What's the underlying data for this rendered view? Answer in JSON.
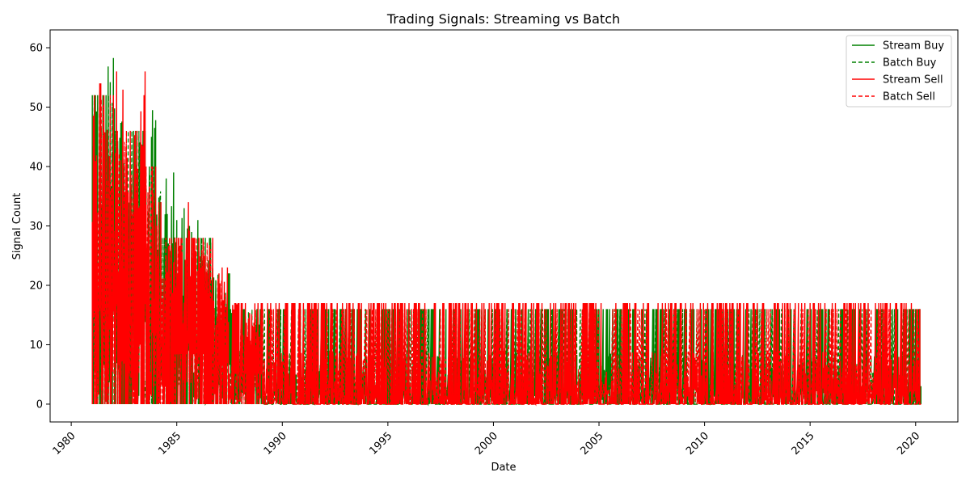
{
  "chart_data": {
    "type": "line",
    "title": "Trading Signals: Streaming vs Batch",
    "xlabel": "Date",
    "ylabel": "Signal Count",
    "xlim": [
      1979.0,
      2022.0
    ],
    "ylim": [
      -3.0,
      63.0
    ],
    "x_ticks": [
      1980,
      1985,
      1990,
      1995,
      2000,
      2005,
      2010,
      2015,
      2020
    ],
    "y_ticks": [
      0,
      10,
      20,
      30,
      40,
      50,
      60
    ],
    "grid": false,
    "legend_position": "top-right",
    "x_range": [
      1981.0,
      2020.25
    ],
    "y_min": 0,
    "series": [
      {
        "name": "Stream Buy",
        "color": "#008000",
        "dash": "solid",
        "envelope": [
          [
            1981.0,
            52
          ],
          [
            1981.3,
            52
          ],
          [
            1981.7,
            59
          ],
          [
            1982.0,
            56
          ],
          [
            1982.2,
            55
          ],
          [
            1982.5,
            46
          ],
          [
            1983.0,
            46
          ],
          [
            1983.5,
            40
          ],
          [
            1983.7,
            45
          ],
          [
            1983.8,
            51
          ],
          [
            1984.0,
            35
          ],
          [
            1984.2,
            38
          ],
          [
            1984.5,
            32
          ],
          [
            1984.7,
            39
          ],
          [
            1985.0,
            28
          ],
          [
            1985.2,
            33
          ],
          [
            1985.5,
            30
          ],
          [
            1985.8,
            31
          ],
          [
            1986.0,
            28
          ],
          [
            1986.7,
            22
          ],
          [
            1987.5,
            16
          ],
          [
            2020.0,
            16
          ]
        ]
      },
      {
        "name": "Batch Buy",
        "color": "#008000",
        "dash": "dashed",
        "envelope": [
          [
            1981.0,
            52
          ],
          [
            1982.0,
            46
          ],
          [
            1983.5,
            40
          ],
          [
            1984.3,
            28
          ],
          [
            1986.7,
            22
          ],
          [
            1987.5,
            16
          ],
          [
            2020.25,
            16
          ]
        ]
      },
      {
        "name": "Stream Sell",
        "color": "#ff0000",
        "dash": "solid",
        "envelope": [
          [
            1981.0,
            52
          ],
          [
            1981.3,
            54
          ],
          [
            1981.4,
            57
          ],
          [
            1981.5,
            52
          ],
          [
            1982.0,
            56
          ],
          [
            1982.5,
            46
          ],
          [
            1982.8,
            57
          ],
          [
            1983.0,
            46
          ],
          [
            1983.2,
            56
          ],
          [
            1983.4,
            56
          ],
          [
            1983.5,
            40
          ],
          [
            1984.0,
            34
          ],
          [
            1984.3,
            28
          ],
          [
            1985.5,
            34
          ],
          [
            1985.6,
            28
          ],
          [
            1986.7,
            22
          ],
          [
            1987.0,
            23
          ],
          [
            1987.5,
            16
          ],
          [
            1987.6,
            17
          ],
          [
            2020.0,
            16
          ]
        ]
      },
      {
        "name": "Batch Sell",
        "color": "#ff0000",
        "dash": "dashed",
        "envelope": [
          [
            1981.0,
            52
          ],
          [
            1982.0,
            46
          ],
          [
            1983.5,
            40
          ],
          [
            1984.3,
            28
          ],
          [
            1986.7,
            22
          ],
          [
            1987.5,
            16
          ],
          [
            2020.25,
            16
          ]
        ]
      }
    ]
  }
}
